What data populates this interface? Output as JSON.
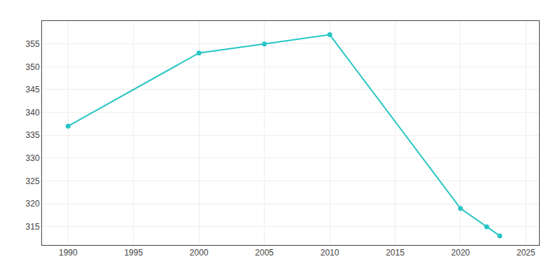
{
  "chart_data": {
    "type": "line",
    "x": [
      1990,
      2000,
      2005,
      2010,
      2020,
      2022,
      2023
    ],
    "values": [
      337,
      353,
      355,
      357,
      319,
      315,
      313
    ],
    "color": "#29c5c5",
    "marker": "circle",
    "xlim": [
      1988,
      2026
    ],
    "ylim": [
      311,
      360
    ],
    "xticks": [
      1990,
      1995,
      2000,
      2005,
      2010,
      2015,
      2020,
      2025
    ],
    "yticks": [
      315,
      320,
      325,
      330,
      335,
      340,
      345,
      350,
      355
    ],
    "grid": true
  }
}
